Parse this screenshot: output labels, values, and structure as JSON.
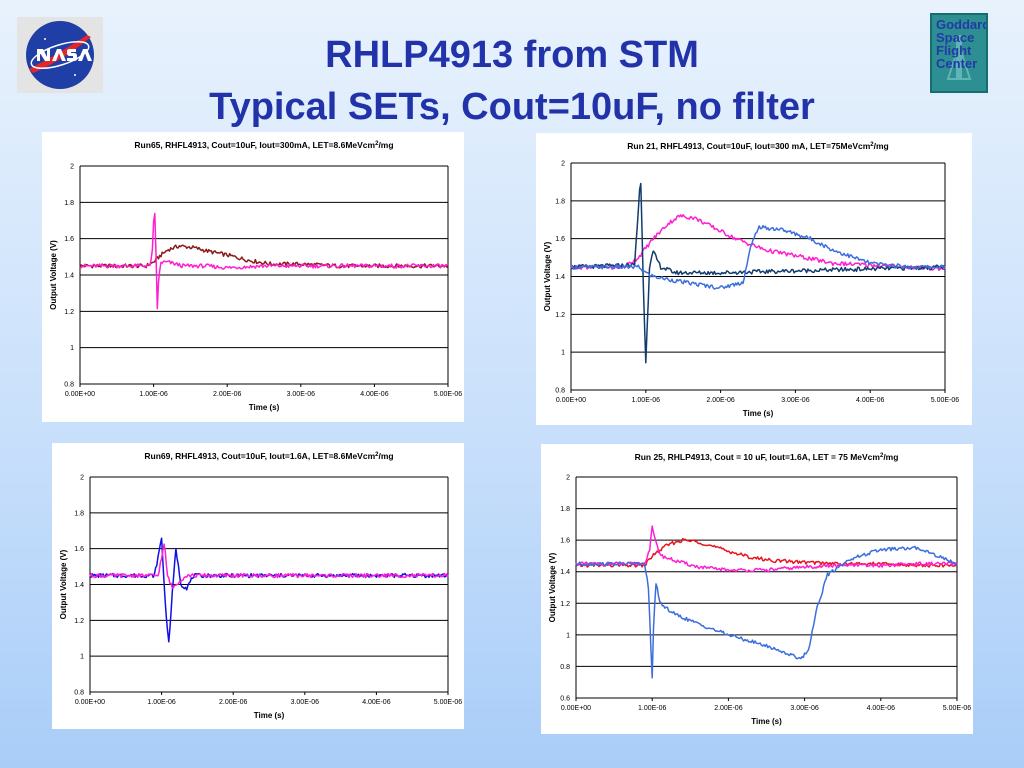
{
  "slide": {
    "title_line1": "RHLP4913 from STM",
    "title_line2": "Typical SETs, Cout=10uF, no filter",
    "gsfc_logo_lines": [
      "Goddard",
      "Space",
      "Flight",
      "Center"
    ]
  },
  "colors": {
    "title": "#2233aa",
    "maroon": "#8b1a1a",
    "magenta": "#ff1fd0",
    "dark_blue": "#123c6e",
    "light_blue": "#3c6fdc",
    "blue": "#1010e6",
    "red": "#e8141e"
  },
  "chart_data": [
    {
      "type": "line",
      "title": "Run65, RHFL4913, Cout=10uF, Iout=300mA, LET=8.6MeVcm",
      "title_sup": "2",
      "title_suffix": "/mg",
      "xlabel": "Time (s)",
      "ylabel": "Output Voltage (V)",
      "xlim": [
        0,
        5e-06
      ],
      "ylim": [
        0.8,
        2
      ],
      "grid": true,
      "legend": "none",
      "xticks": [
        "0.00E+00",
        "1.00E-06",
        "2.00E-06",
        "3.00E-06",
        "4.00E-06",
        "5.00E-06"
      ],
      "yticks": [
        "2",
        "1.8",
        "1.6",
        "1.4",
        "1.2",
        "1",
        "0.8"
      ],
      "series": [
        {
          "color": "maroon",
          "x": [
            0,
            9e-07,
            1e-06,
            1.1e-06,
            1.2e-06,
            1.35e-06,
            1.55e-06,
            1.75e-06,
            2e-06,
            2.3e-06,
            2.6e-06,
            3e-06,
            3.5e-06,
            4e-06,
            4.5e-06,
            5e-06
          ],
          "y": [
            1.45,
            1.45,
            1.47,
            1.51,
            1.54,
            1.56,
            1.55,
            1.53,
            1.51,
            1.48,
            1.46,
            1.46,
            1.45,
            1.45,
            1.45,
            1.45
          ]
        },
        {
          "color": "magenta",
          "x": [
            0,
            9.5e-07,
            9.9e-07,
            1.01e-06,
            1.03e-06,
            1.05e-06,
            1.07e-06,
            1.1e-06,
            1.2e-06,
            1.4e-06,
            1.7e-06,
            2e-06,
            2.5e-06,
            3e-06,
            4e-06,
            5e-06
          ],
          "y": [
            1.45,
            1.45,
            1.55,
            1.82,
            1.55,
            1.22,
            1.38,
            1.47,
            1.47,
            1.45,
            1.45,
            1.44,
            1.45,
            1.45,
            1.45,
            1.45
          ]
        }
      ]
    },
    {
      "type": "line",
      "title": "Run 21, RHFL4913, Cout=10uF, Iout=300 mA, LET=75MeVcm",
      "title_sup": "2",
      "title_suffix": "/mg",
      "xlabel": "Time (s)",
      "ylabel": "Output Voltage (V)",
      "xlim": [
        0,
        5e-06
      ],
      "ylim": [
        0.8,
        2
      ],
      "grid": true,
      "legend": "none",
      "xticks": [
        "0.00E+00",
        "1.00E-06",
        "2.00E-06",
        "3.00E-06",
        "4.00E-06",
        "5.00E-06"
      ],
      "yticks": [
        "2",
        "1.8",
        "1.6",
        "1.4",
        "1.2",
        "1",
        "0.8"
      ],
      "series": [
        {
          "color": "magenta",
          "x": [
            0,
            7e-07,
            9e-07,
            1.1e-06,
            1.3e-06,
            1.45e-06,
            1.65e-06,
            1.9e-06,
            2.2e-06,
            2.6e-06,
            3e-06,
            3.5e-06,
            4e-06,
            4.5e-06,
            5e-06
          ],
          "y": [
            1.45,
            1.45,
            1.5,
            1.6,
            1.68,
            1.72,
            1.71,
            1.66,
            1.6,
            1.54,
            1.51,
            1.47,
            1.46,
            1.45,
            1.44
          ]
        },
        {
          "color": "dark_blue",
          "x": [
            0,
            8.5e-07,
            9e-07,
            9.3e-07,
            9.7e-07,
            1e-06,
            1.05e-06,
            1.1e-06,
            1.2e-06,
            1.4e-06,
            2e-06,
            3e-06,
            4e-06,
            5e-06
          ],
          "y": [
            1.45,
            1.46,
            1.75,
            1.95,
            1.3,
            0.95,
            1.45,
            1.53,
            1.45,
            1.42,
            1.42,
            1.43,
            1.44,
            1.45
          ]
        },
        {
          "color": "light_blue",
          "x": [
            0,
            9e-07,
            1e-06,
            1.1e-06,
            1.5e-06,
            2e-06,
            2.3e-06,
            2.4e-06,
            2.5e-06,
            2.8e-06,
            3.2e-06,
            3.5e-06,
            4e-06,
            4.5e-06,
            5e-06
          ],
          "y": [
            1.45,
            1.45,
            1.42,
            1.4,
            1.37,
            1.34,
            1.37,
            1.55,
            1.66,
            1.65,
            1.6,
            1.54,
            1.47,
            1.45,
            1.45
          ]
        }
      ]
    },
    {
      "type": "line",
      "title": "Run69, RHFL4913, Cout=10uF, Iout=1.6A, LET=8.6MeVcm",
      "title_sup": "2",
      "title_suffix": "/mg",
      "xlabel": "Time (s)",
      "ylabel": "Output Voltage (V)",
      "xlim": [
        0,
        5e-06
      ],
      "ylim": [
        0.8,
        2
      ],
      "grid": true,
      "legend": "none",
      "xticks": [
        "0.00E+00",
        "1.00E-06",
        "2.00E-06",
        "3.00E-06",
        "4.00E-06",
        "5.00E-06"
      ],
      "yticks": [
        "2",
        "1.8",
        "1.6",
        "1.4",
        "1.2",
        "1",
        "0.8"
      ],
      "series": [
        {
          "color": "blue",
          "x": [
            0,
            9e-07,
            9.5e-07,
            1e-06,
            1.05e-06,
            1.1e-06,
            1.15e-06,
            1.2e-06,
            1.27e-06,
            1.35e-06,
            1.45e-06,
            1.6e-06,
            2e-06,
            3e-06,
            4e-06,
            5e-06
          ],
          "y": [
            1.45,
            1.45,
            1.55,
            1.66,
            1.3,
            1.07,
            1.35,
            1.6,
            1.4,
            1.38,
            1.45,
            1.45,
            1.45,
            1.45,
            1.45,
            1.45
          ]
        },
        {
          "color": "magenta",
          "x": [
            0,
            9.5e-07,
            1e-06,
            1.04e-06,
            1.08e-06,
            1.15e-06,
            1.25e-06,
            1.35e-06,
            1.5e-06,
            2e-06,
            3e-06,
            4e-06,
            5e-06
          ],
          "y": [
            1.45,
            1.45,
            1.55,
            1.63,
            1.45,
            1.38,
            1.42,
            1.45,
            1.45,
            1.45,
            1.45,
            1.45,
            1.45
          ]
        }
      ]
    },
    {
      "type": "line",
      "title": "Run 25, RHLP4913, Cout = 10 uF, Iout=1.6A, LET = 75 MeVcm",
      "title_sup": "2",
      "title_suffix": "/mg",
      "xlabel": "Time (s)",
      "ylabel": "Output Voltage (V)",
      "xlim": [
        0,
        5e-06
      ],
      "ylim": [
        0.6,
        2
      ],
      "grid": true,
      "legend": "none",
      "xticks": [
        "0.00E+00",
        "1.00E-06",
        "2.00E-06",
        "3.00E-06",
        "4.00E-06",
        "5.00E-06"
      ],
      "yticks": [
        "2",
        "1.8",
        "1.6",
        "1.4",
        "1.2",
        "1",
        "0.8",
        "0.6"
      ],
      "series": [
        {
          "color": "red",
          "x": [
            0,
            9e-07,
            1e-06,
            1.2e-06,
            1.4e-06,
            1.6e-06,
            1.8e-06,
            2e-06,
            2.3e-06,
            2.6e-06,
            3e-06,
            3.5e-06,
            4e-06,
            4.5e-06,
            5e-06
          ],
          "y": [
            1.44,
            1.44,
            1.5,
            1.57,
            1.6,
            1.59,
            1.56,
            1.53,
            1.49,
            1.47,
            1.46,
            1.45,
            1.45,
            1.44,
            1.44
          ]
        },
        {
          "color": "magenta",
          "x": [
            0,
            9e-07,
            9.7e-07,
            1e-06,
            1.05e-06,
            1.12e-06,
            1.3e-06,
            1.6e-06,
            2e-06,
            2.5e-06,
            3e-06,
            3.5e-06,
            4e-06,
            4.5e-06,
            5e-06
          ],
          "y": [
            1.45,
            1.45,
            1.55,
            1.68,
            1.58,
            1.5,
            1.47,
            1.43,
            1.41,
            1.41,
            1.43,
            1.44,
            1.44,
            1.45,
            1.45
          ]
        },
        {
          "color": "light_blue",
          "x": [
            0,
            9e-07,
            9.5e-07,
            1e-06,
            1.02e-06,
            1.05e-06,
            1.1e-06,
            1.3e-06,
            1.6e-06,
            2e-06,
            2.5e-06,
            2.95e-06,
            3.05e-06,
            3.15e-06,
            3.3e-06,
            3.6e-06,
            4e-06,
            4.5e-06,
            5e-06
          ],
          "y": [
            1.45,
            1.45,
            1.3,
            0.72,
            1.1,
            1.33,
            1.2,
            1.13,
            1.07,
            1.0,
            0.93,
            0.85,
            0.9,
            1.15,
            1.38,
            1.48,
            1.54,
            1.55,
            1.45
          ]
        }
      ]
    }
  ]
}
